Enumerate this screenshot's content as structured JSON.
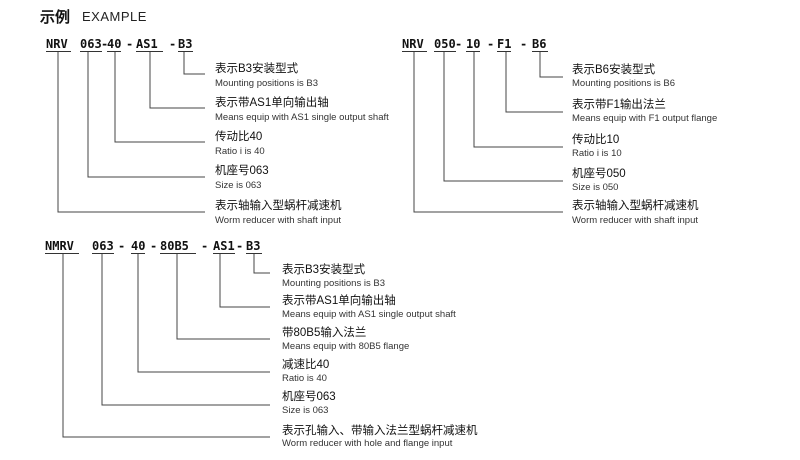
{
  "title": {
    "cn": "示例",
    "en": "EXAMPLE"
  },
  "examples": [
    {
      "segments": [
        "NRV",
        "063",
        "40",
        "AS1",
        "B3"
      ],
      "separator": "-",
      "items": [
        {
          "cn": "表示B3安装型式",
          "en": "Mounting positions is B3"
        },
        {
          "cn": "表示带AS1单向输出轴",
          "en": "Means equip with AS1 single output shaft"
        },
        {
          "cn": "传动比40",
          "en": "Ratio i is 40"
        },
        {
          "cn": "机座号063",
          "en": "Size is 063"
        },
        {
          "cn": "表示轴输入型蜗杆减速机",
          "en": "Worm reducer with shaft input"
        }
      ]
    },
    {
      "segments": [
        "NRV",
        "050",
        "10",
        "F1",
        "B6"
      ],
      "separator": "-",
      "items": [
        {
          "cn": "表示B6安装型式",
          "en": "Mounting positions is B6"
        },
        {
          "cn": "表示带F1输出法兰",
          "en": "Means equip with F1 output flange"
        },
        {
          "cn": "传动比10",
          "en": "Ratio i is 10"
        },
        {
          "cn": "机座号050",
          "en": "Size is 050"
        },
        {
          "cn": "表示轴输入型蜗杆减速机",
          "en": "Worm reducer with shaft input"
        }
      ]
    },
    {
      "segments": [
        "NMRV",
        "063",
        "40",
        "80B5",
        "AS1",
        "B3"
      ],
      "separator": "-",
      "items": [
        {
          "cn": "表示B3安装型式",
          "en": "Mounting positions is B3"
        },
        {
          "cn": "表示带AS1单向输出轴",
          "en": "Means equip with AS1 single output shaft"
        },
        {
          "cn": "带80B5输入法兰",
          "en": "Means equip with 80B5 flange"
        },
        {
          "cn": "减速比40",
          "en": "Ratio is 40"
        },
        {
          "cn": "机座号063",
          "en": "Size is 063"
        },
        {
          "cn": "表示孔输入、带输入法兰型蜗杆减速机",
          "en": "Worm reducer with hole and flange input"
        }
      ]
    }
  ]
}
